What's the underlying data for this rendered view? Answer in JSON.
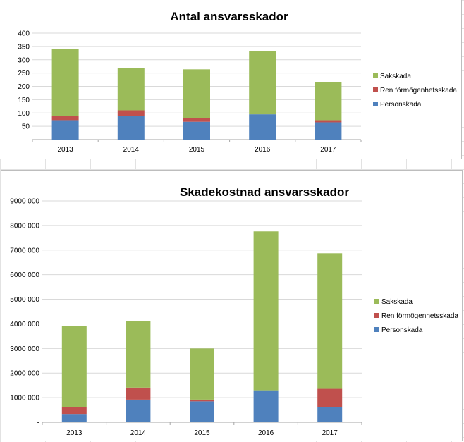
{
  "colors": {
    "Personskada": "#4f81bd",
    "Ren förmögenhetsskada": "#c0504d",
    "Sakskada": "#9bbb59"
  },
  "chart_data": [
    {
      "type": "bar",
      "stacked": true,
      "title": "Antal ansvarsskador",
      "categories": [
        "2013",
        "2014",
        "2015",
        "2016",
        "2017"
      ],
      "series": [
        {
          "name": "Personskada",
          "values": [
            73,
            90,
            67,
            95,
            65
          ]
        },
        {
          "name": "Ren förmögenhetsskada",
          "values": [
            17,
            20,
            15,
            0,
            8
          ]
        },
        {
          "name": "Sakskada",
          "values": [
            250,
            160,
            182,
            238,
            144
          ]
        }
      ],
      "ylim": [
        0,
        400
      ],
      "yticks": [
        "-",
        "50",
        "100",
        "150",
        "200",
        "250",
        "300",
        "350",
        "400"
      ],
      "grid": true,
      "legend": "right"
    },
    {
      "type": "bar",
      "stacked": true,
      "title": "Skadekostnad ansvarsskador",
      "categories": [
        "2013",
        "2014",
        "2015",
        "2016",
        "2017"
      ],
      "series": [
        {
          "name": "Personskada",
          "values": [
            340000,
            920000,
            850000,
            1300000,
            620000
          ]
        },
        {
          "name": "Ren förmögenhetsskada",
          "values": [
            290000,
            490000,
            70000,
            0,
            740000
          ]
        },
        {
          "name": "Sakskada",
          "values": [
            3270000,
            2690000,
            2080000,
            6460000,
            5510000
          ]
        }
      ],
      "ylim": [
        0,
        9000000
      ],
      "yticks": [
        "-",
        "1000 000",
        "2000 000",
        "3000 000",
        "4000 000",
        "5000 000",
        "6000 000",
        "7000 000",
        "8000 000",
        "9000 000"
      ],
      "grid": true,
      "legend": "right"
    }
  ]
}
